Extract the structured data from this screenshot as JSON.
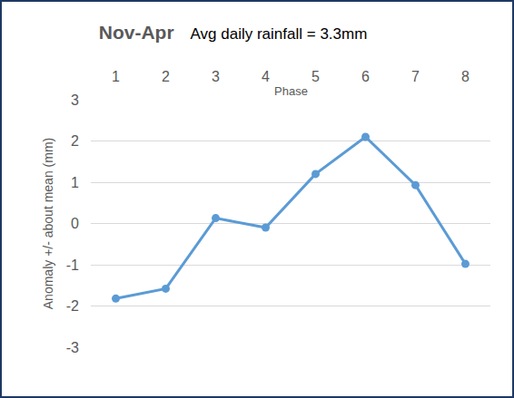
{
  "chart_data": {
    "type": "line",
    "title": "Nov-Apr",
    "subtitle": "Avg daily rainfall = 3.3mm",
    "x_label": "Phase",
    "y_label": "Anomaly +/- about mean (mm)",
    "categories": [
      "1",
      "2",
      "3",
      "4",
      "5",
      "6",
      "7",
      "8"
    ],
    "values": [
      -1.82,
      -1.58,
      0.13,
      -0.1,
      1.2,
      2.1,
      0.93,
      -0.98
    ],
    "color": "#5b9bd5",
    "marker": "circle",
    "ylim": [
      -3,
      3
    ],
    "yticks": [
      -3,
      -2,
      -1,
      0,
      1,
      2,
      3
    ],
    "grid": true
  }
}
